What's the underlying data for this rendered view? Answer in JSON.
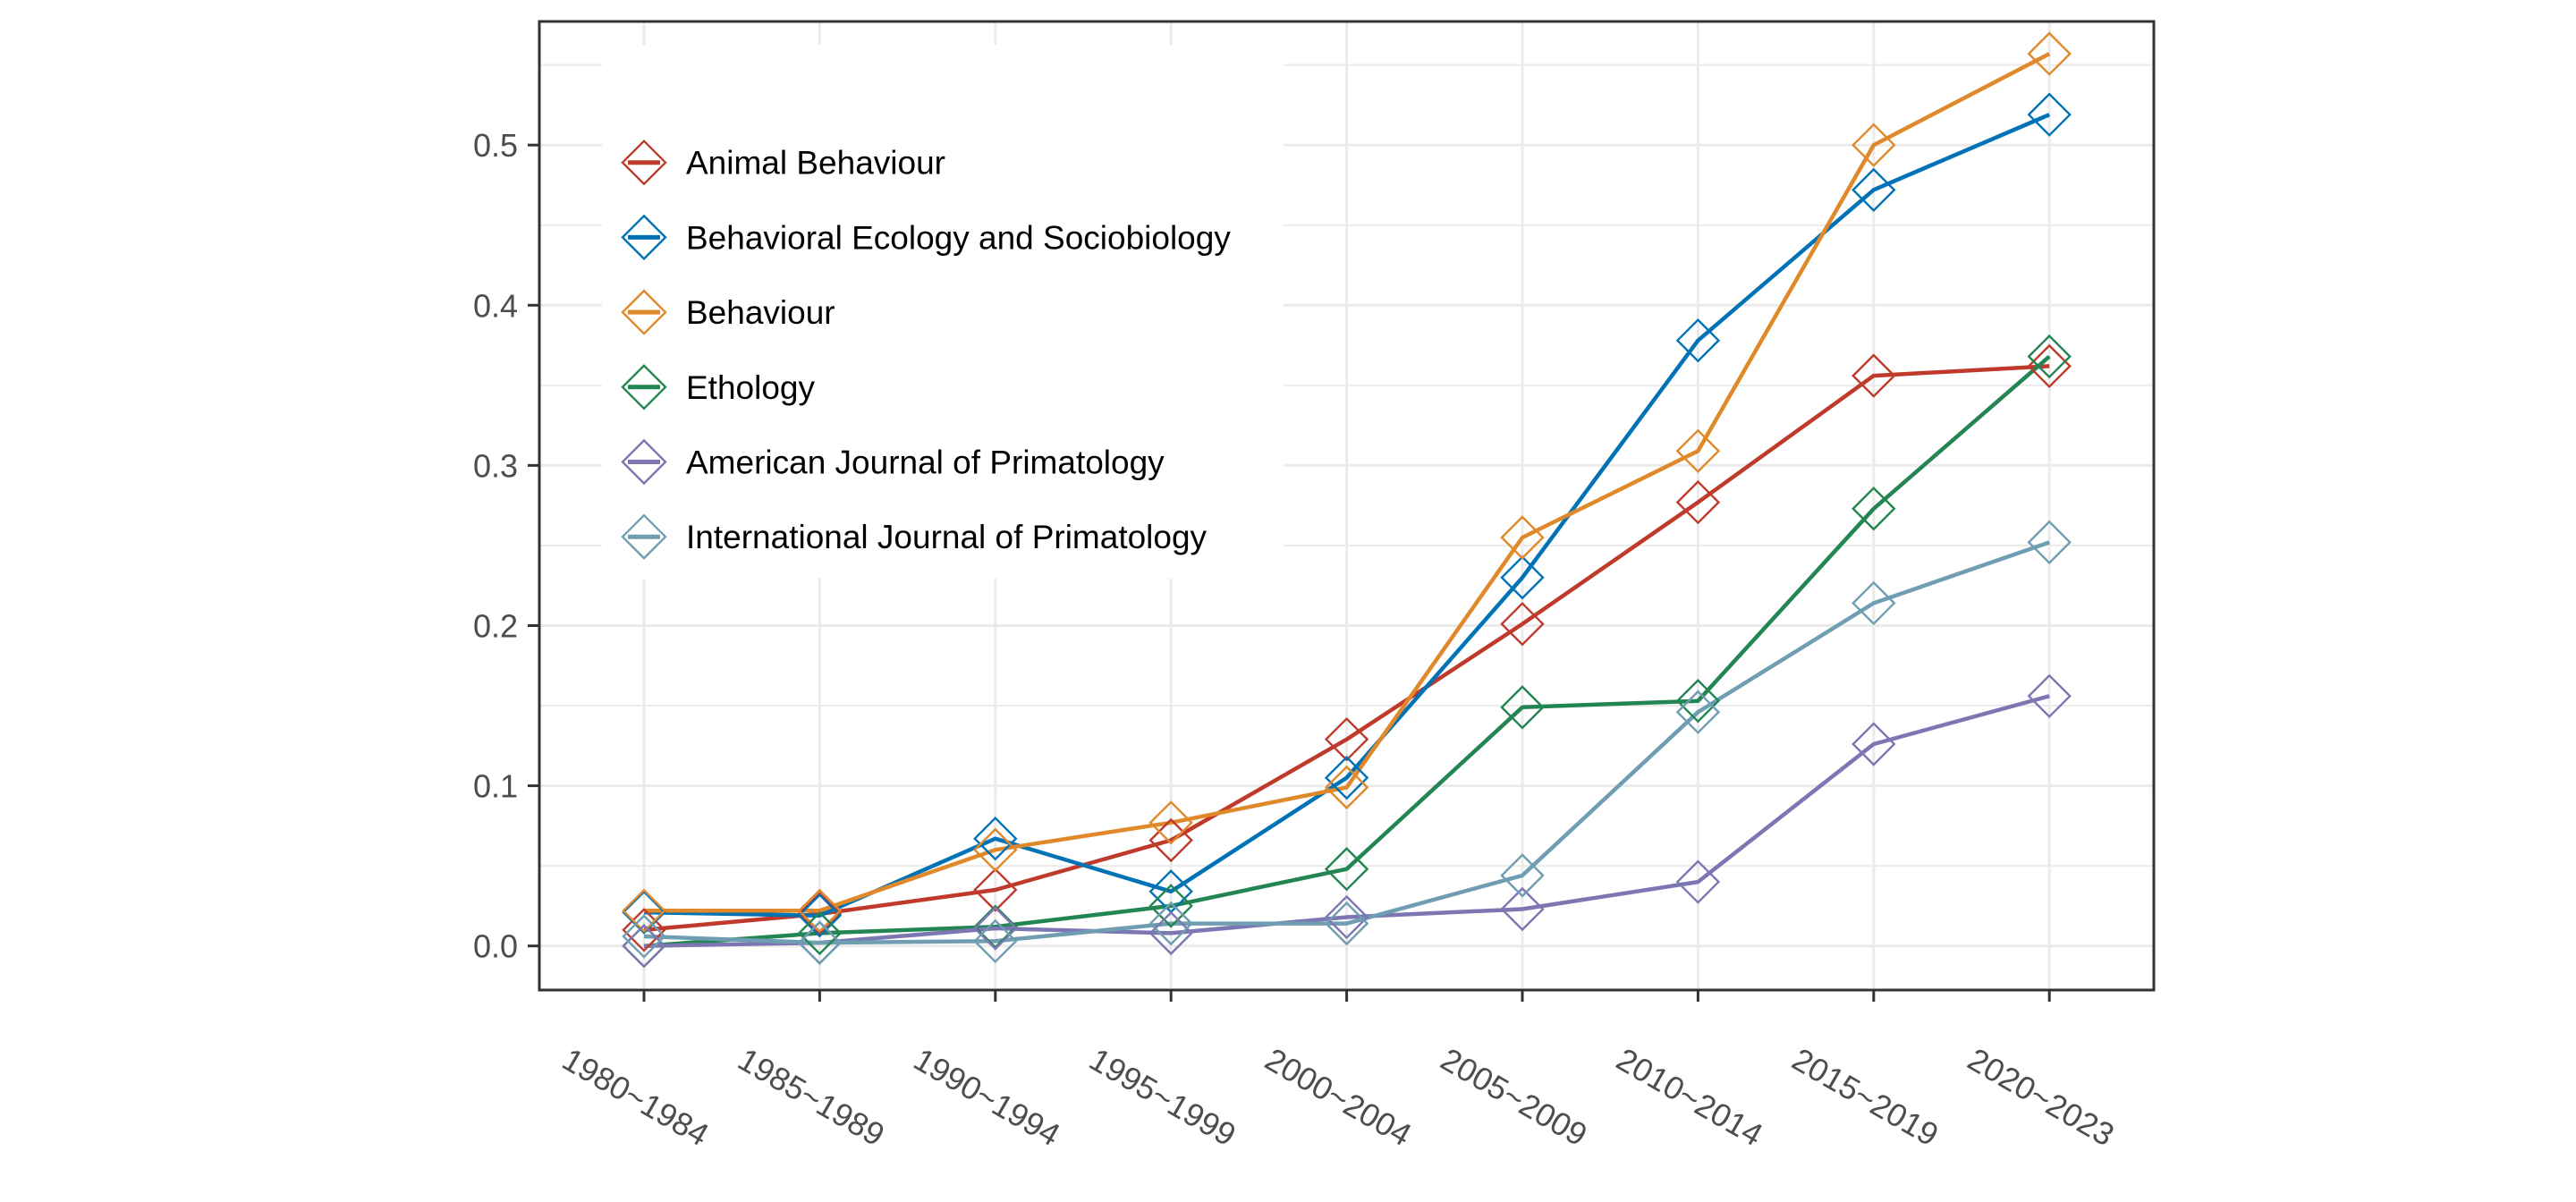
{
  "chart_data": {
    "type": "line",
    "title": "",
    "xlabel": "",
    "ylabel": "",
    "categories": [
      "1980~1984",
      "1985~1989",
      "1990~1994",
      "1995~1999",
      "2000~2004",
      "2005~2009",
      "2010~2014",
      "2015~2019",
      "2020~2023"
    ],
    "ylim": [
      -0.028,
      0.577
    ],
    "yticks": [
      0.0,
      0.1,
      0.2,
      0.3,
      0.4,
      0.5
    ],
    "ytick_labels": [
      "0.0",
      "0.1",
      "0.2",
      "0.3",
      "0.4",
      "0.5"
    ],
    "grid": true,
    "marker": "open-diamond",
    "legend_position": "top-left inside",
    "series": [
      {
        "name": "Animal Behaviour",
        "color": "#bf3a2b",
        "values": [
          0.01,
          0.02,
          0.035,
          0.066,
          0.129,
          0.201,
          0.277,
          0.356,
          0.362
        ]
      },
      {
        "name": "Behavioral Ecology and Sociobiology",
        "color": "#0072b5",
        "values": [
          0.021,
          0.019,
          0.067,
          0.034,
          0.105,
          0.23,
          0.378,
          0.472,
          0.519
        ]
      },
      {
        "name": "Behaviour",
        "color": "#e0892b",
        "values": [
          0.022,
          0.022,
          0.06,
          0.077,
          0.099,
          0.255,
          0.309,
          0.5,
          0.557
        ]
      },
      {
        "name": "Ethology",
        "color": "#228552",
        "values": [
          0.0,
          0.008,
          0.012,
          0.025,
          0.048,
          0.149,
          0.153,
          0.273,
          0.368
        ]
      },
      {
        "name": "American Journal of Primatology",
        "color": "#7c77b3",
        "values": [
          0.0,
          0.002,
          0.011,
          0.008,
          0.018,
          0.023,
          0.04,
          0.126,
          0.156
        ]
      },
      {
        "name": "International Journal of Primatology",
        "color": "#6f9db1",
        "values": [
          0.006,
          0.002,
          0.003,
          0.014,
          0.014,
          0.044,
          0.146,
          0.214,
          0.252
        ]
      }
    ]
  }
}
